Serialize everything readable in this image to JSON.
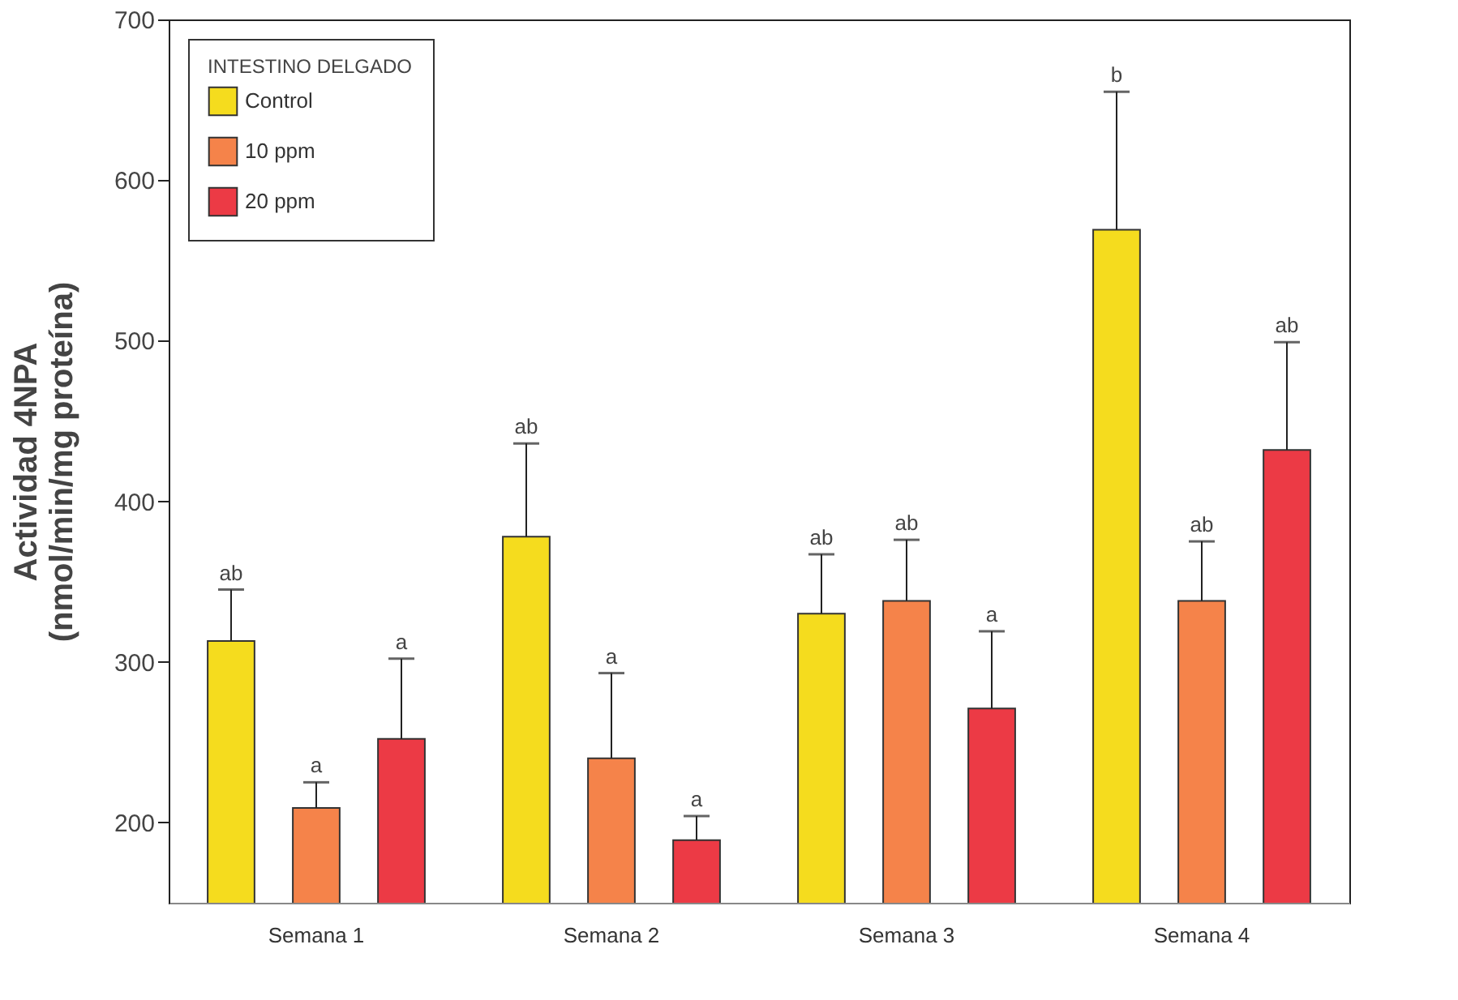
{
  "chart_data": {
    "type": "bar",
    "ylabel": "Actividad 4NPA\n(nmol/min/mg proteína)",
    "legend_title": "INTESTINO DELGADO",
    "categories": [
      "Semana 1",
      "Semana 2",
      "Semana 3",
      "Semana 4"
    ],
    "series": [
      {
        "name": "Control",
        "color": "#f5dc1e",
        "values": [
          313,
          378,
          330,
          569
        ],
        "errors": [
          [
            313,
            345
          ],
          [
            378,
            436
          ],
          [
            330,
            367
          ],
          [
            569,
            655
          ]
        ]
      },
      {
        "name": "10 ppm",
        "color": "#f5834a",
        "values": [
          209,
          240,
          338,
          338
        ],
        "errors": [
          [
            209,
            225
          ],
          [
            240,
            293
          ],
          [
            338,
            376
          ],
          [
            338,
            375
          ]
        ]
      },
      {
        "name": "20 ppm",
        "color": "#ec3a45",
        "values": [
          252,
          189,
          271,
          432
        ],
        "errors": [
          [
            252,
            302
          ],
          [
            189,
            204
          ],
          [
            271,
            319
          ],
          [
            432,
            499
          ]
        ]
      }
    ],
    "annotations": [
      "ab",
      "a",
      "a",
      "ab",
      "a",
      "a",
      "ab",
      "ab",
      "a",
      "b",
      "ab",
      "ab"
    ],
    "ylim": [
      150,
      700
    ],
    "yticks": [
      200,
      300,
      400,
      500,
      600,
      700
    ],
    "grid": false,
    "legend": "top left"
  }
}
